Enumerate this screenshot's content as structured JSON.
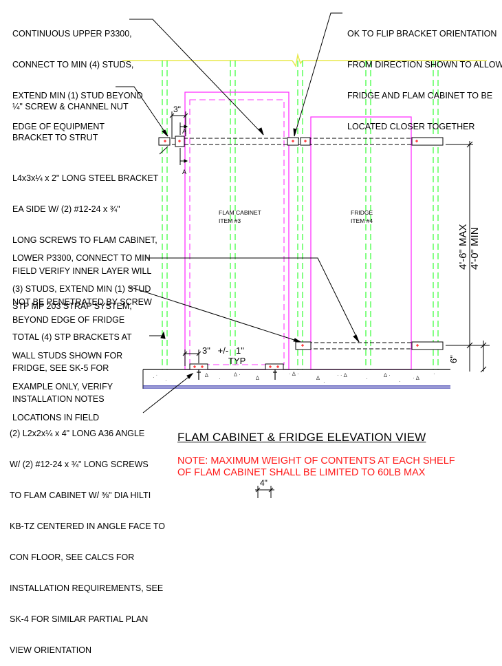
{
  "notes": {
    "upper_p3300": [
      "CONTINUOUS UPPER P3300,",
      "CONNECT TO MIN (4) STUDS,",
      "EXTEND MIN (1) STUD BEYOND",
      "EDGE OF EQUIPMENT"
    ],
    "flip_bracket": [
      "OK TO FLIP BRACKET ORIENTATION",
      "FROM DIRECTION SHOWN TO ALLOW",
      "FRIDGE AND FLAM CABINET TO BE",
      "LOCATED CLOSER TOGETHER"
    ],
    "screw_channel": [
      "¼\" SCREW & CHANNEL NUT",
      "BRACKET TO STRUT"
    ],
    "steel_bracket": [
      "L4x3x¼ x 2\" LONG STEEL BRACKET",
      "EA SIDE W/ (2) #12-24 x ¾\"",
      "LONG SCREWS TO FLAM CABINET,",
      "FIELD VERIFY INNER LAYER WILL",
      "NOT BE PENETRATED BY SCREW"
    ],
    "lower_p3300": [
      "LOWER P3300, CONNECT TO MIN",
      "(3) STUDS, EXTEND MIN (1) STUD",
      "BEYOND EDGE OF FRIDGE"
    ],
    "stp_strap": [
      "STP MP 203 STRAP SYSTEM,",
      "TOTAL (4) STP BRACKETS AT",
      "FRIDGE, SEE SK-5 FOR",
      "INSTALLATION NOTES"
    ],
    "wall_studs": [
      "WALL STUDS SHOWN FOR",
      "EXAMPLE ONLY, VERIFY",
      "LOCATIONS IN FIELD"
    ],
    "angle": [
      "(2) L2x2x¼ x 4\" LONG A36 ANGLE",
      "W/ (2) #12-24 x ¾\" LONG SCREWS",
      "TO FLAM CABINET W/ ⅜\" DIA HILTI",
      "KB-TZ CENTERED IN ANGLE FACE TO",
      "CON FLOOR, SEE CALCS FOR",
      "INSTALLATION REQUIREMENTS, SEE",
      "SK-4 FOR SIMILAR PARTIAL PLAN",
      "VIEW ORIENTATION"
    ]
  },
  "labels": {
    "flam_cabinet": "FLAM CABINET",
    "flam_item": "ITEM #3",
    "fridge": "FRIDGE",
    "fridge_item": "ITEM #4",
    "dim_max": "4'-6\" MAX",
    "dim_min": "4'-0\" MIN",
    "dim_3in": "3\"",
    "dim_3in_pm": "3\"   +/-   1\"",
    "typ": "TYP",
    "dim_6in": "6\"",
    "dim_4in": "4\"",
    "section_a": "A"
  },
  "title": "FLAM CABINET & FRIDGE ELEVATION VIEW",
  "note_red": [
    "NOTE: MAXIMUM WEIGHT  OF CONTENTS AT EACH SHELF",
    "OF FLAM CABINET SHALL BE LIMITED TO 60LB MAX"
  ],
  "colors": {
    "stud": "#33ff33",
    "cabinet": "#ff33ff",
    "ceiling": "#e8e84a",
    "floor_line": "#1a1aa0",
    "bracket_red": "#ff0000",
    "note": "#ff1a1a"
  }
}
